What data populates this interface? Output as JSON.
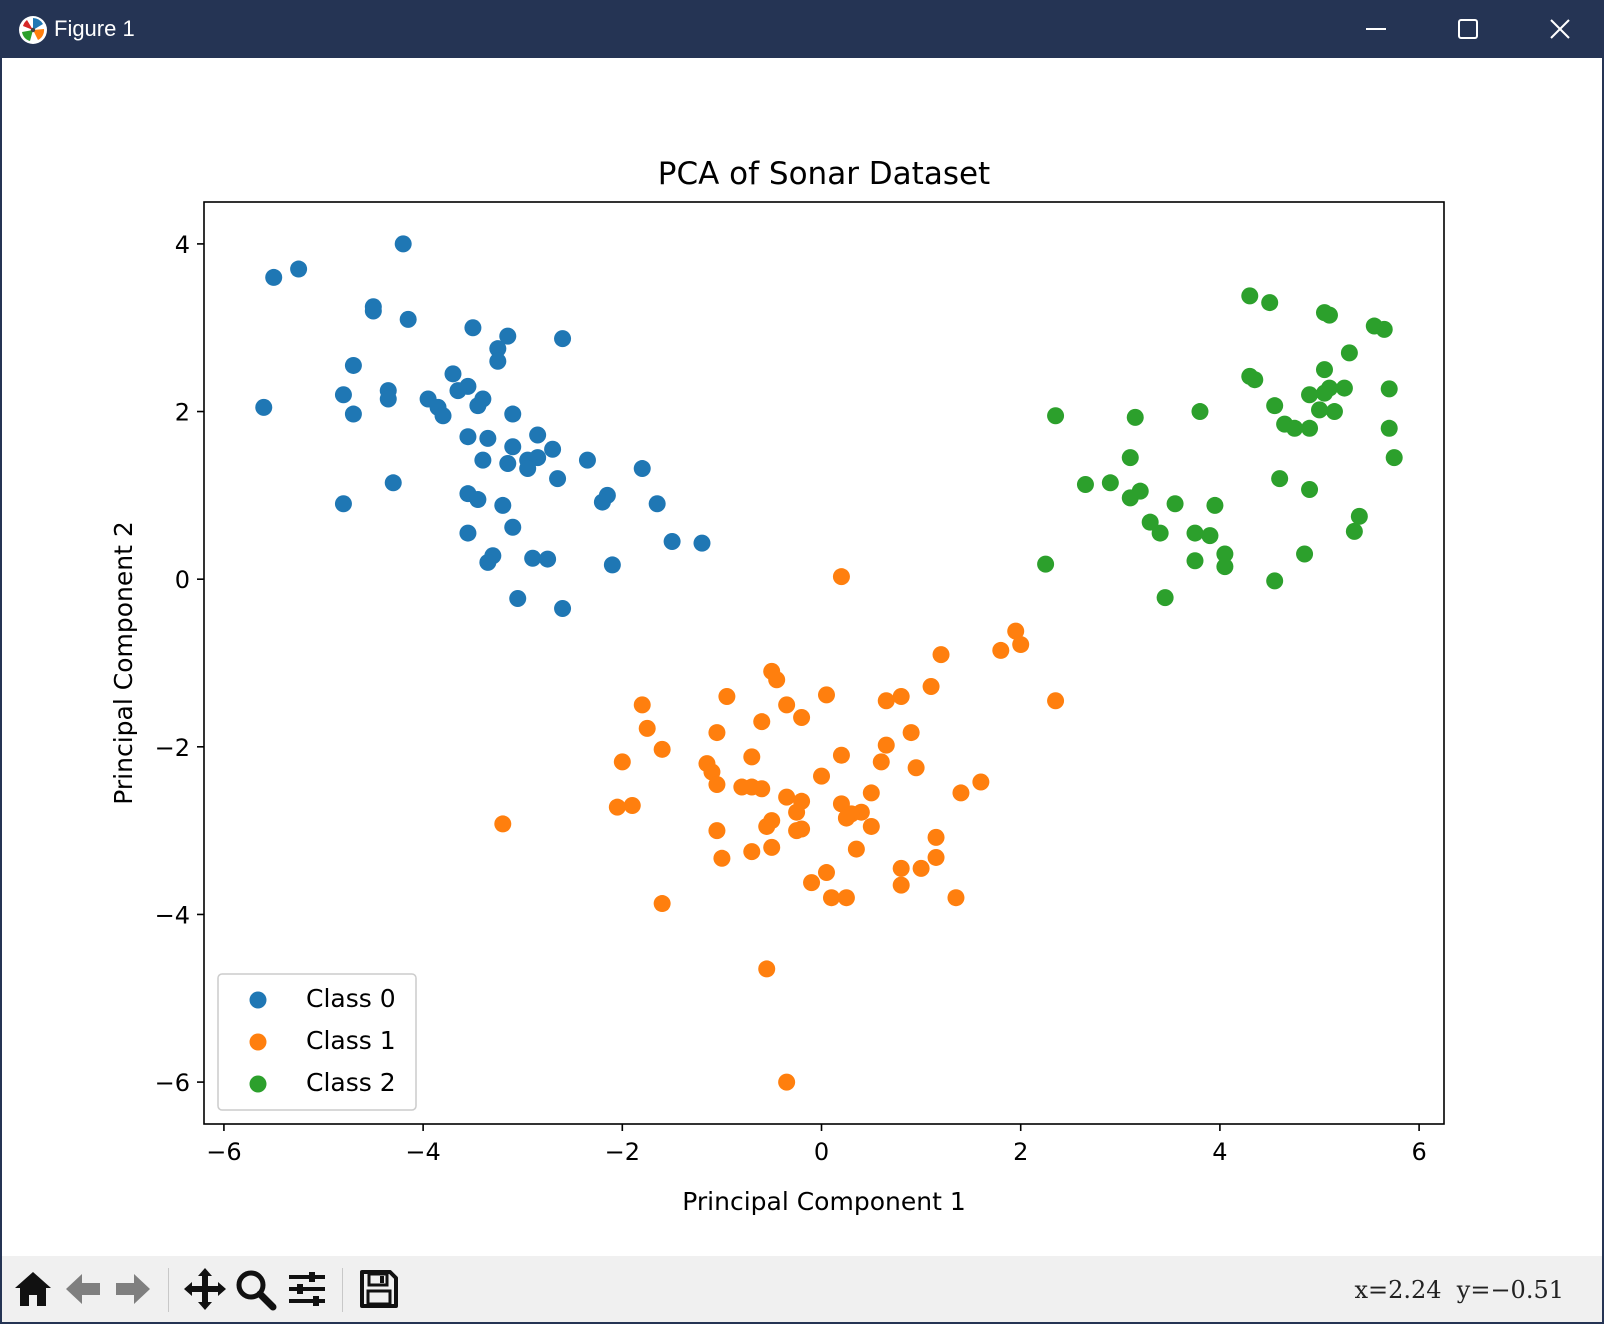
{
  "window": {
    "title": "Figure 1"
  },
  "toolbar": {
    "coords": "x=2.24  y=−0.51",
    "tools": [
      "home-icon",
      "back-arrow-icon",
      "forward-arrow-icon",
      "pan-icon",
      "zoom-icon",
      "configure-subplots-icon",
      "save-icon"
    ]
  },
  "chart_data": {
    "type": "scatter",
    "title": "PCA of Sonar Dataset",
    "xlabel": "Principal Component 1",
    "ylabel": "Principal Component 2",
    "xlim": [
      -6.2,
      6.25
    ],
    "ylim": [
      -6.5,
      4.5
    ],
    "xticks": [
      -6,
      -4,
      -2,
      0,
      2,
      4,
      6
    ],
    "yticks": [
      -6,
      -4,
      -2,
      0,
      2,
      4
    ],
    "grid": false,
    "legend_position": "lower-left",
    "series": [
      {
        "name": "Class 0",
        "color": "#1f77b4",
        "points": [
          [
            -4.2,
            4.0
          ],
          [
            -5.5,
            3.6
          ],
          [
            -5.25,
            3.7
          ],
          [
            -4.5,
            3.25
          ],
          [
            -4.5,
            3.2
          ],
          [
            -4.15,
            3.1
          ],
          [
            -3.5,
            3.0
          ],
          [
            -3.15,
            2.9
          ],
          [
            -2.6,
            2.87
          ],
          [
            -3.25,
            2.75
          ],
          [
            -3.25,
            2.6
          ],
          [
            -4.7,
            2.55
          ],
          [
            -3.7,
            2.45
          ],
          [
            -3.55,
            2.3
          ],
          [
            -3.65,
            2.25
          ],
          [
            -4.35,
            2.25
          ],
          [
            -4.8,
            2.2
          ],
          [
            -4.35,
            2.15
          ],
          [
            -3.95,
            2.15
          ],
          [
            -3.4,
            2.15
          ],
          [
            -5.6,
            2.05
          ],
          [
            -3.85,
            2.05
          ],
          [
            -3.45,
            2.07
          ],
          [
            -4.7,
            1.97
          ],
          [
            -3.8,
            1.95
          ],
          [
            -3.1,
            1.97
          ],
          [
            -2.85,
            1.72
          ],
          [
            -3.55,
            1.7
          ],
          [
            -3.35,
            1.68
          ],
          [
            -3.1,
            1.58
          ],
          [
            -2.7,
            1.55
          ],
          [
            -2.85,
            1.45
          ],
          [
            -3.4,
            1.42
          ],
          [
            -3.15,
            1.38
          ],
          [
            -2.95,
            1.42
          ],
          [
            -2.95,
            1.32
          ],
          [
            -2.35,
            1.42
          ],
          [
            -1.8,
            1.32
          ],
          [
            -2.65,
            1.2
          ],
          [
            -4.3,
            1.15
          ],
          [
            -3.55,
            1.02
          ],
          [
            -3.45,
            0.95
          ],
          [
            -2.15,
            1.0
          ],
          [
            -2.2,
            0.92
          ],
          [
            -1.65,
            0.9
          ],
          [
            -4.8,
            0.9
          ],
          [
            -3.2,
            0.88
          ],
          [
            -3.1,
            0.62
          ],
          [
            -3.55,
            0.55
          ],
          [
            -1.5,
            0.45
          ],
          [
            -1.2,
            0.43
          ],
          [
            -3.3,
            0.28
          ],
          [
            -2.9,
            0.25
          ],
          [
            -2.75,
            0.24
          ],
          [
            -3.35,
            0.2
          ],
          [
            -2.1,
            0.17
          ],
          [
            -3.05,
            -0.23
          ],
          [
            -2.6,
            -0.35
          ]
        ]
      },
      {
        "name": "Class 1",
        "color": "#ff7f0e",
        "points": [
          [
            0.2,
            0.03
          ],
          [
            1.95,
            -0.62
          ],
          [
            2.0,
            -0.78
          ],
          [
            1.8,
            -0.85
          ],
          [
            1.2,
            -0.9
          ],
          [
            -0.5,
            -1.1
          ],
          [
            -0.45,
            -1.2
          ],
          [
            1.1,
            -1.28
          ],
          [
            -0.95,
            -1.4
          ],
          [
            0.05,
            -1.38
          ],
          [
            0.8,
            -1.4
          ],
          [
            0.65,
            -1.45
          ],
          [
            2.35,
            -1.45
          ],
          [
            -1.8,
            -1.5
          ],
          [
            -0.35,
            -1.5
          ],
          [
            -0.2,
            -1.65
          ],
          [
            -0.6,
            -1.7
          ],
          [
            -1.75,
            -1.78
          ],
          [
            -1.05,
            -1.83
          ],
          [
            0.9,
            -1.83
          ],
          [
            0.65,
            -1.98
          ],
          [
            -1.6,
            -2.03
          ],
          [
            0.2,
            -2.1
          ],
          [
            -0.7,
            -2.12
          ],
          [
            -2.0,
            -2.18
          ],
          [
            -1.15,
            -2.2
          ],
          [
            0.6,
            -2.18
          ],
          [
            0.95,
            -2.25
          ],
          [
            -1.1,
            -2.3
          ],
          [
            0.0,
            -2.35
          ],
          [
            1.6,
            -2.42
          ],
          [
            -1.05,
            -2.45
          ],
          [
            -0.8,
            -2.48
          ],
          [
            -0.7,
            -2.48
          ],
          [
            -0.6,
            -2.5
          ],
          [
            0.5,
            -2.55
          ],
          [
            1.4,
            -2.55
          ],
          [
            -0.35,
            -2.6
          ],
          [
            -0.2,
            -2.65
          ],
          [
            0.2,
            -2.68
          ],
          [
            -2.05,
            -2.72
          ],
          [
            -1.9,
            -2.7
          ],
          [
            -0.25,
            -2.78
          ],
          [
            0.4,
            -2.78
          ],
          [
            0.3,
            -2.8
          ],
          [
            0.25,
            -2.85
          ],
          [
            -0.5,
            -2.88
          ],
          [
            -0.55,
            -2.95
          ],
          [
            0.5,
            -2.95
          ],
          [
            -1.05,
            -3.0
          ],
          [
            -0.2,
            -2.98
          ],
          [
            -0.25,
            -3.0
          ],
          [
            -3.2,
            -2.92
          ],
          [
            1.15,
            -3.08
          ],
          [
            -0.5,
            -3.2
          ],
          [
            0.35,
            -3.22
          ],
          [
            -0.7,
            -3.25
          ],
          [
            1.15,
            -3.32
          ],
          [
            -1.0,
            -3.33
          ],
          [
            0.8,
            -3.45
          ],
          [
            1.0,
            -3.45
          ],
          [
            0.05,
            -3.5
          ],
          [
            -0.1,
            -3.62
          ],
          [
            0.8,
            -3.65
          ],
          [
            0.1,
            -3.8
          ],
          [
            0.25,
            -3.8
          ],
          [
            1.35,
            -3.8
          ],
          [
            -1.6,
            -3.87
          ],
          [
            -0.55,
            -4.65
          ],
          [
            -0.35,
            -6.0
          ]
        ]
      },
      {
        "name": "Class 2",
        "color": "#2ca02c",
        "points": [
          [
            4.3,
            3.38
          ],
          [
            4.5,
            3.3
          ],
          [
            5.05,
            3.18
          ],
          [
            5.1,
            3.15
          ],
          [
            5.55,
            3.02
          ],
          [
            5.65,
            2.98
          ],
          [
            5.3,
            2.7
          ],
          [
            5.05,
            2.5
          ],
          [
            4.3,
            2.42
          ],
          [
            4.35,
            2.38
          ],
          [
            5.1,
            2.28
          ],
          [
            5.25,
            2.28
          ],
          [
            5.7,
            2.27
          ],
          [
            5.05,
            2.22
          ],
          [
            4.9,
            2.2
          ],
          [
            4.55,
            2.07
          ],
          [
            5.0,
            2.02
          ],
          [
            5.15,
            2.0
          ],
          [
            3.8,
            2.0
          ],
          [
            2.35,
            1.95
          ],
          [
            3.15,
            1.93
          ],
          [
            4.65,
            1.85
          ],
          [
            4.75,
            1.8
          ],
          [
            4.9,
            1.8
          ],
          [
            5.7,
            1.8
          ],
          [
            5.75,
            1.45
          ],
          [
            3.1,
            1.45
          ],
          [
            4.6,
            1.2
          ],
          [
            2.65,
            1.13
          ],
          [
            2.9,
            1.15
          ],
          [
            3.2,
            1.05
          ],
          [
            4.9,
            1.07
          ],
          [
            3.1,
            0.97
          ],
          [
            3.55,
            0.9
          ],
          [
            3.95,
            0.88
          ],
          [
            5.4,
            0.75
          ],
          [
            3.3,
            0.68
          ],
          [
            3.4,
            0.55
          ],
          [
            3.75,
            0.55
          ],
          [
            3.9,
            0.52
          ],
          [
            5.35,
            0.57
          ],
          [
            4.05,
            0.3
          ],
          [
            4.85,
            0.3
          ],
          [
            3.75,
            0.22
          ],
          [
            2.25,
            0.18
          ],
          [
            4.05,
            0.15
          ],
          [
            4.55,
            -0.02
          ],
          [
            3.45,
            -0.22
          ]
        ]
      }
    ]
  }
}
